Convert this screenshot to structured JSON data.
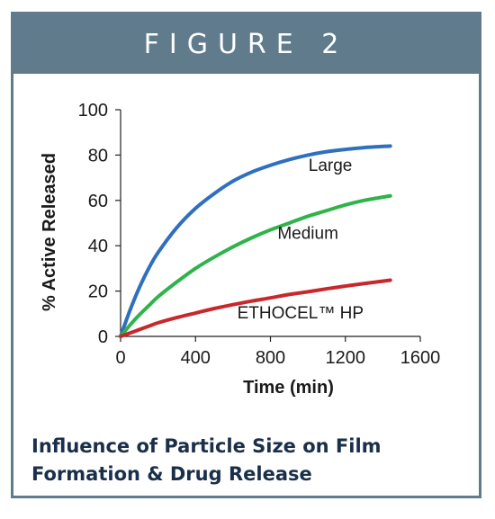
{
  "figure_label": "FIGURE 2",
  "caption": "Influence of Particle Size on Film Formation & Drug Release",
  "colors": {
    "banner": "#5f7b8c",
    "caption": "#1a2f4a"
  },
  "chart_data": {
    "type": "line",
    "title": "",
    "xlabel": "Time (min)",
    "ylabel": "% Active Released",
    "xlim": [
      0,
      1600
    ],
    "ylim": [
      0,
      100
    ],
    "xticks": [
      "0",
      "400",
      "800",
      "1200",
      "1600"
    ],
    "yticks": [
      "0",
      "20",
      "40",
      "60",
      "80",
      "100"
    ],
    "grid": false,
    "legend": "none",
    "x": [
      0,
      50,
      100,
      150,
      200,
      300,
      400,
      500,
      600,
      700,
      800,
      900,
      1000,
      1100,
      1200,
      1300,
      1440
    ],
    "series": [
      {
        "name": "Large",
        "color": "#2f6fc0",
        "values": [
          0,
          11.5,
          21.5,
          30,
          37,
          48,
          56.5,
          63,
          68.5,
          72.5,
          75.5,
          78,
          80,
          81.5,
          82.5,
          83.3,
          84
        ]
      },
      {
        "name": "Medium",
        "color": "#2fb34a",
        "values": [
          0,
          5,
          9.5,
          13.5,
          17.5,
          24,
          30,
          35,
          39.5,
          43.5,
          47,
          50,
          53,
          55.5,
          58,
          60,
          62
        ]
      },
      {
        "name": "ETHOCEL™ HP",
        "color": "#c8282b",
        "values": [
          0,
          1.5,
          3,
          4.5,
          6,
          8.3,
          10.3,
          12.3,
          14,
          15.6,
          17,
          18.5,
          19.7,
          21,
          22.2,
          23.3,
          24.8
        ]
      }
    ]
  }
}
